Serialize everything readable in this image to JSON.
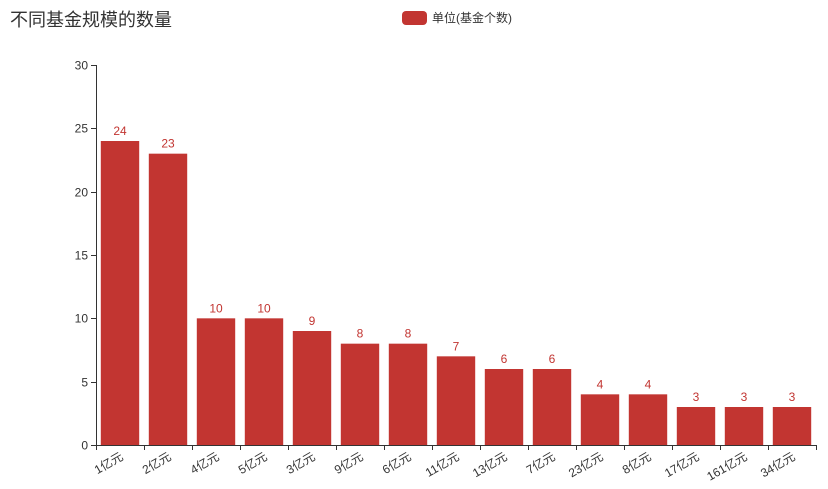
{
  "chart_data": {
    "type": "bar",
    "title": "不同基金规模的数量",
    "categories": [
      "1亿元",
      "2亿元",
      "4亿元",
      "5亿元",
      "3亿元",
      "9亿元",
      "6亿元",
      "11亿元",
      "13亿元",
      "7亿元",
      "23亿元",
      "8亿元",
      "17亿元",
      "161亿元",
      "34亿元"
    ],
    "series": [
      {
        "name": "单位(基金个数)",
        "values": [
          24,
          23,
          10,
          10,
          9,
          8,
          8,
          7,
          6,
          6,
          4,
          4,
          3,
          3,
          3
        ]
      }
    ],
    "ylim": [
      0,
      30
    ],
    "yticks": [
      0,
      5,
      10,
      15,
      20,
      25,
      30
    ],
    "grid": false,
    "legend_position": "top-center",
    "bar_color": "#c23531",
    "data_labels": true
  }
}
